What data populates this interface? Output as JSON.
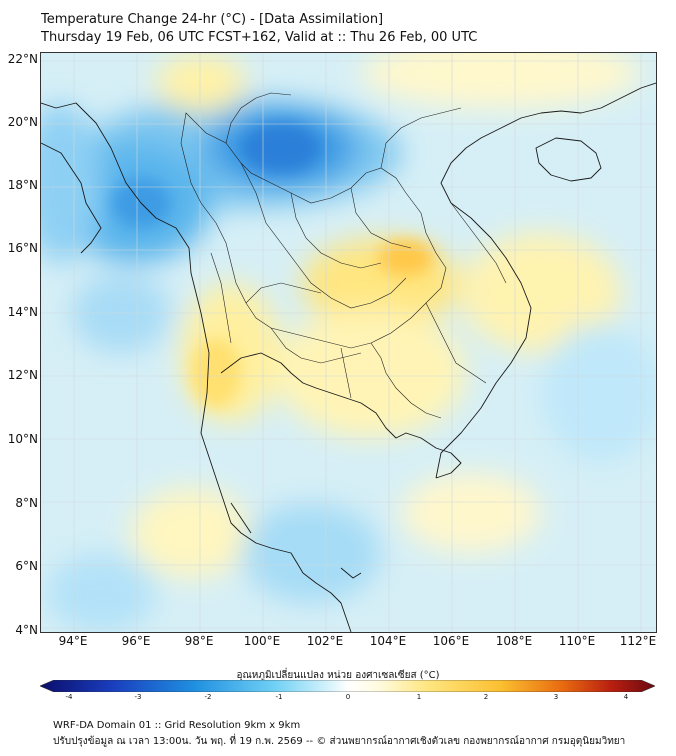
{
  "title": {
    "line1": "Temperature Change 24-hr (°C) - [Data Assimilation]",
    "line2": "Thursday 19 Feb, 06 UTC FCST+162, Valid at :: Thu 26 Feb, 00 UTC"
  },
  "map": {
    "lat_labels": [
      "22°N",
      "20°N",
      "18°N",
      "16°N",
      "14°N",
      "12°N",
      "10°N",
      "8°N",
      "6°N",
      "4°N"
    ],
    "lon_labels": [
      "94°E",
      "96°E",
      "98°E",
      "100°E",
      "102°E",
      "104°E",
      "106°E",
      "108°E",
      "110°E",
      "112°E"
    ],
    "region": "Mainland Southeast Asia (Thailand and neighbouring countries)"
  },
  "colorbar": {
    "title": "อุณหภูมิเปลี่ยนแปลง หน่วย องศาเซลเซียส (°C)",
    "ticks": [
      "-4",
      "-3",
      "-2",
      "-1",
      "0",
      "1",
      "2",
      "3",
      "4"
    ],
    "colors": {
      "min": "#0b0d6b",
      "cold": "#1f8fe0",
      "cool": "#bfeefa",
      "neutral": "#ffffff",
      "warm": "#ffe680",
      "hot": "#f09010",
      "max": "#6a0a10"
    }
  },
  "footer": {
    "line1": "WRF-DA Domain 01 :: Grid Resolution 9km x 9km",
    "line2": "ปรับปรุงข้อมูล ณ เวลา 13:00น. วัน พฤ. ที่ 19 ก.พ. 2569 -- © ส่วนพยากรณ์อากาศเชิงตัวเลข กองพยากรณ์อากาศ กรมอุตุนิยมวิทยา"
  }
}
